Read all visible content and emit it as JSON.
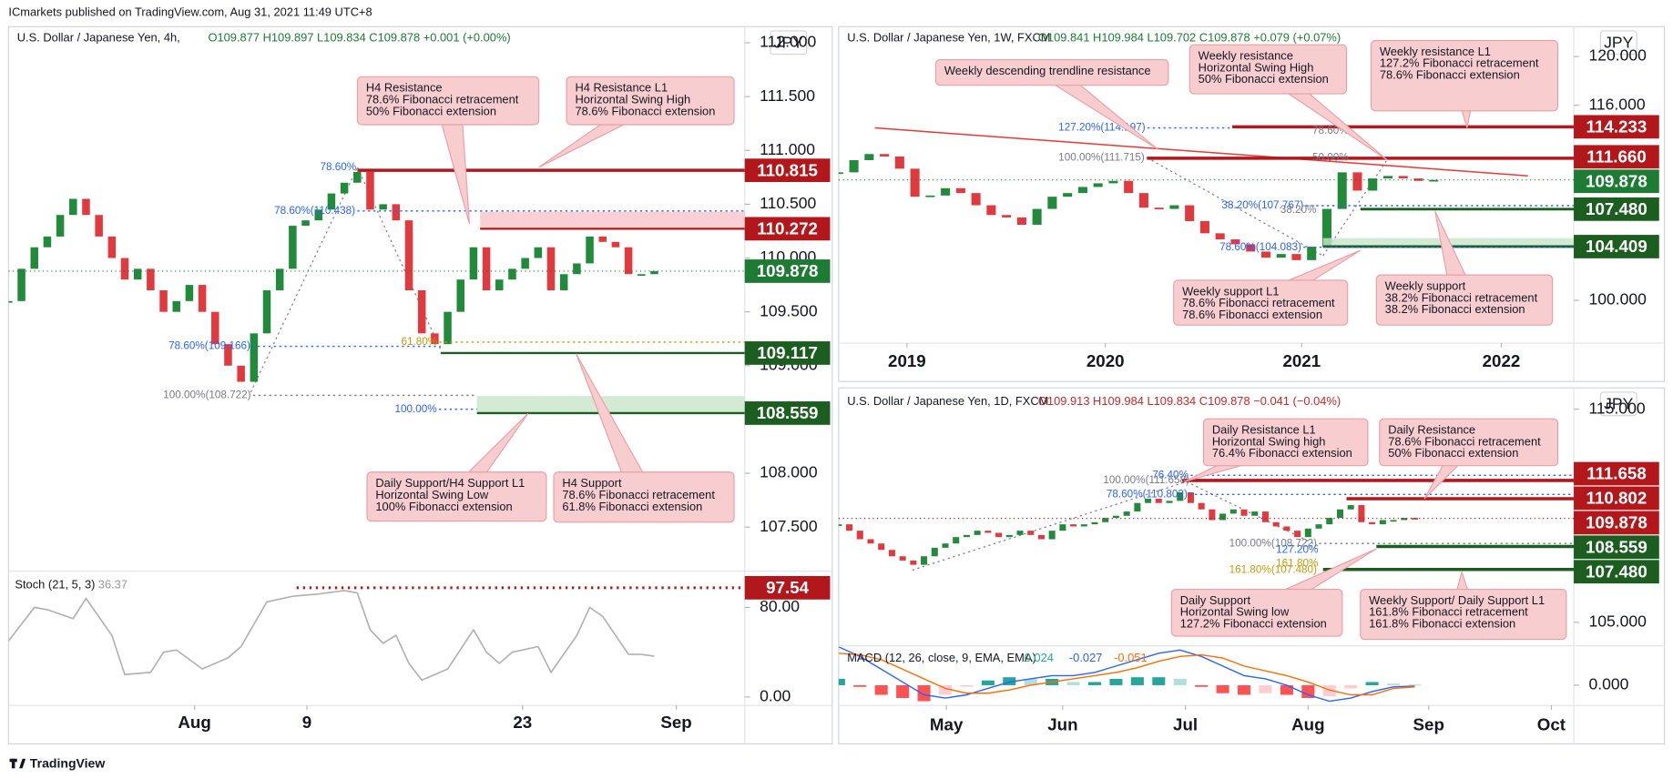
{
  "header": {
    "publisher": "ICmarkets published on TradingView.com, Aug 31, 2021 11:49 UTC+8"
  },
  "footer": {
    "brand": "TradingView"
  },
  "chart_data": [
    {
      "type": "candlestick",
      "title": "U.S. Dollar / Japanese Yen, 4h,",
      "ohlc": "O109.877 H109.897 L109.834 C109.878 +0.001 (+0.00%)",
      "currency": "JPY",
      "up_color": "#228b3b",
      "down_color": "#e0393e",
      "values": [
        109.6,
        109.9,
        110.1,
        110.2,
        110.4,
        110.55,
        110.4,
        110.2,
        110.0,
        109.8,
        109.9,
        109.7,
        109.5,
        109.6,
        109.75,
        109.5,
        109.2,
        109.0,
        108.85,
        109.3,
        109.7,
        109.9,
        110.3,
        110.35,
        110.45,
        110.6,
        110.7,
        110.8,
        110.45,
        110.5,
        110.35,
        109.7,
        109.3,
        109.2,
        109.5,
        109.8,
        110.1,
        109.7,
        109.8,
        109.9,
        110.0,
        110.1,
        109.7,
        109.85,
        109.95,
        110.2,
        110.15,
        110.1,
        109.85,
        109.85,
        109.878
      ],
      "xlim": [
        0,
        57
      ],
      "xticks": [
        {
          "value": 14.4,
          "label": "Aug"
        },
        {
          "value": 23.1,
          "label": "9"
        },
        {
          "value": 39.8,
          "label": "23"
        },
        {
          "value": 51.7,
          "label": "Sep"
        }
      ],
      "ylim": [
        107.1,
        112.15
      ],
      "yticks": [
        {
          "value": 112,
          "label": "112.000"
        },
        {
          "value": 111.5,
          "label": "111.500"
        },
        {
          "value": 111,
          "label": "111.000"
        },
        {
          "value": 110.5,
          "label": "110.500"
        },
        {
          "value": 110,
          "label": "110.000"
        },
        {
          "value": 109.5,
          "label": "109.500"
        },
        {
          "value": 109,
          "label": "109.000"
        },
        {
          "value": 108.5,
          "label": "108.500"
        },
        {
          "value": 108,
          "label": "108.000"
        },
        {
          "value": 107.5,
          "label": "107.500"
        }
      ],
      "price_labels": [
        {
          "value": 110.815,
          "label": "110.815",
          "color": "#b2181b"
        },
        {
          "value": 110.272,
          "label": "110.272",
          "color": "#b2181b"
        },
        {
          "value": 109.878,
          "label": "109.878",
          "color": "#1e7b34"
        },
        {
          "value": 109.117,
          "label": "109.117",
          "color": "#1b5e20"
        },
        {
          "value": 108.559,
          "label": "108.559",
          "color": "#1b5e20"
        }
      ],
      "fib_labels": [
        "78.60%",
        "78.60%(110.438)",
        "78.60%(109.166)",
        "61.80%",
        "100.00%(108.722)",
        "100.00%"
      ],
      "annotations": [
        {
          "lines": [
            "H4 Resistance",
            "78.6% Fibonacci retracement",
            "50% Fibonacci extension"
          ]
        },
        {
          "lines": [
            "H4 Resistance L1",
            "Horizontal Swing High",
            "78.6% Fibonacci extension"
          ]
        },
        {
          "lines": [
            "Daily Support/H4 Support L1",
            "Horizontal Swing Low",
            "100% Fibonacci extension"
          ]
        },
        {
          "lines": [
            "H4 Support",
            "78.6% Fibonacci retracement",
            "61.8% Fibonacci extension"
          ]
        }
      ]
    },
    {
      "type": "line",
      "title": "Stoch (21, 5, 3)",
      "color": "#b0b0b0",
      "x": [
        0,
        2,
        3,
        5,
        6,
        8,
        9,
        11,
        12,
        13,
        15,
        17,
        18,
        20,
        22,
        24,
        26,
        27,
        28,
        29,
        30,
        31,
        32,
        34,
        36,
        37,
        38,
        39,
        41,
        42,
        44,
        45,
        46,
        47,
        48,
        49,
        50
      ],
      "values": [
        50,
        80,
        78,
        70,
        88,
        55,
        20,
        22,
        40,
        42,
        25,
        35,
        45,
        85,
        90,
        92,
        95,
        93,
        60,
        48,
        55,
        30,
        15,
        25,
        60,
        40,
        30,
        40,
        45,
        22,
        55,
        80,
        72,
        55,
        38,
        38,
        36.37
      ],
      "xlim": [
        0,
        57
      ],
      "ylim": [
        -7.6,
        111.4
      ],
      "yticks": [
        {
          "value": 80,
          "label": "80.00"
        },
        {
          "value": 0,
          "label": "0.00"
        }
      ],
      "price_labels": [
        {
          "value": 97.54,
          "label": "97.54",
          "color": "#b2181b"
        }
      ]
    },
    {
      "type": "candlestick",
      "title": "U.S. Dollar / Japanese Yen, 1W, FXCM",
      "ohlc": "O109.841 H109.984 L109.702 C109.878 +0.079 (+0.07%)",
      "currency": "JPY",
      "up_color": "#228b3b",
      "down_color": "#e0393e",
      "values": [
        110.5,
        111.5,
        112.0,
        111.8,
        110.8,
        108.5,
        108.6,
        109.2,
        108.8,
        107.8,
        107.0,
        106.8,
        106.2,
        107.5,
        108.5,
        108.8,
        109.3,
        109.6,
        109.8,
        108.8,
        107.6,
        107.5,
        107.8,
        106.5,
        105.5,
        105.0,
        104.6,
        104.0,
        103.5,
        103.8,
        103.3,
        104.4,
        107.5,
        110.5,
        109.0,
        110.0,
        110.2,
        110.0,
        109.8,
        109.878
      ],
      "xlim": [
        0,
        48.18
      ],
      "xticks": [
        {
          "value": 4.48,
          "label": "2019"
        },
        {
          "value": 17.48,
          "label": "2020"
        },
        {
          "value": 30.35,
          "label": "2021"
        },
        {
          "value": 43.43,
          "label": "2022"
        }
      ],
      "ylim": [
        96.49,
        122.45
      ],
      "yticks": [
        {
          "value": 120,
          "label": "120.000"
        },
        {
          "value": 116,
          "label": "116.000"
        },
        {
          "value": 100,
          "label": "100.000"
        }
      ],
      "price_labels": [
        {
          "value": 114.233,
          "label": "114.233",
          "color": "#b2181b"
        },
        {
          "value": 111.66,
          "label": "111.660",
          "color": "#b2181b"
        },
        {
          "value": 109.878,
          "label": "109.878",
          "color": "#1e7b34"
        },
        {
          "value": 107.48,
          "label": "107.480",
          "color": "#1b5e20"
        },
        {
          "value": 104.409,
          "label": "104.409",
          "color": "#1b5e20"
        }
      ],
      "fib_labels": [
        "127.20%(114.197)",
        "78.60%",
        "100.00%(111.715)",
        "50.00%",
        "38.20%(107.767)",
        "38.20%",
        "78.60%(104.083)"
      ],
      "annotations": [
        {
          "lines": [
            "Weekly descending trendline resistance"
          ]
        },
        {
          "lines": [
            "Weekly resistance",
            "Horizontal Swing High",
            "50% Fibonacci extension"
          ]
        },
        {
          "lines": [
            "Weekly resistance L1",
            "127.2% Fibonacci retracement",
            "78.6% Fibonacci extension"
          ]
        },
        {
          "lines": [
            "Weekly support L1",
            "78.6% Fibonacci retracement",
            "78.6% Fibonacci extension"
          ]
        },
        {
          "lines": [
            "Weekly support",
            "38.2% Fibonacci retracement",
            "38.2% Fibonacci extension"
          ]
        }
      ]
    },
    {
      "type": "candlestick",
      "title": "U.S. Dollar / Japanese Yen, 1D, FXCM",
      "ohlc": "O109.913 H109.984 L109.834 C109.878 −0.041 (−0.04%)",
      "currency": "JPY",
      "up_color": "#228b3b",
      "down_color": "#e0393e",
      "values": [
        109.6,
        109.3,
        108.9,
        108.7,
        108.4,
        108.1,
        107.9,
        107.7,
        108.1,
        108.5,
        108.7,
        109.0,
        109.1,
        109.3,
        109.2,
        109.0,
        109.1,
        109.3,
        109.1,
        108.9,
        109.3,
        109.6,
        109.5,
        109.6,
        109.7,
        109.9,
        110.0,
        110.2,
        110.6,
        110.8,
        110.6,
        110.7,
        111.1,
        110.6,
        110.3,
        109.8,
        110.1,
        110.3,
        110.0,
        110.2,
        109.7,
        109.5,
        109.3,
        109.0,
        109.4,
        109.6,
        109.9,
        110.3,
        110.5,
        109.7,
        109.6,
        109.8,
        109.8,
        109.9,
        109.878
      ],
      "xlim": [
        0,
        68.9
      ],
      "xticks": [
        {
          "value": 10.1,
          "label": "May"
        },
        {
          "value": 21.0,
          "label": "Jun"
        },
        {
          "value": 32.5,
          "label": "Jul"
        },
        {
          "value": 44.0,
          "label": "Aug"
        },
        {
          "value": 55.3,
          "label": "Sep"
        },
        {
          "value": 66.8,
          "label": "Oct"
        }
      ],
      "ylim": [
        103.95,
        116.0
      ],
      "yticks": [
        {
          "value": 115,
          "label": "115.000"
        },
        {
          "value": 105,
          "label": "105.000"
        }
      ],
      "price_labels": [
        {
          "value": 111.658,
          "label": "111.658",
          "color": "#b2181b"
        },
        {
          "value": 110.802,
          "label": "110.802",
          "color": "#b2181b"
        },
        {
          "value": 109.878,
          "label": "109.878",
          "color": "#b2181b"
        },
        {
          "value": 108.559,
          "label": "108.559",
          "color": "#1b5e20"
        },
        {
          "value": 107.48,
          "label": "107.480",
          "color": "#1b5e20"
        }
      ],
      "fib_labels": [
        "76.40%",
        "100.00%(111.658)",
        "78.60%(110.802)",
        "100.00%(108.722)",
        "127.20%",
        "161.80%",
        "161.80%(107.480)"
      ],
      "annotations": [
        {
          "lines": [
            "Daily Resistance L1",
            "Horizontal Swing high",
            "76.4% Fibonacci extension"
          ]
        },
        {
          "lines": [
            "Daily Resistance",
            "78.6% Fibonacci retracement",
            "50% Fibonacci extension"
          ]
        },
        {
          "lines": [
            "Daily Support",
            "Horizontal Swing low",
            "127.2% Fibonacci extension"
          ]
        },
        {
          "lines": [
            "Weekly Support/ Daily Support L1",
            "161.8% Fibonacci retracement",
            "161.8% Fibonacci extension"
          ]
        }
      ]
    },
    {
      "type": "macd",
      "title": "MACD (12, 26, close, 9, EMA, EMA)",
      "x": [
        0,
        2,
        4,
        6,
        8,
        10,
        12,
        14,
        16,
        18,
        20,
        22,
        24,
        26,
        28,
        30,
        32,
        34,
        36,
        38,
        40,
        42,
        44,
        46,
        48,
        50,
        52,
        54
      ],
      "series": [
        {
          "color": "#26a69a",
          "values": [
            0.2,
            -0.05,
            -0.3,
            -0.4,
            -0.5,
            -0.3,
            -0.05,
            0.15,
            0.25,
            0.2,
            0.2,
            0.1,
            0.1,
            0.2,
            0.25,
            0.25,
            0.2,
            -0.05,
            -0.25,
            -0.3,
            -0.25,
            -0.3,
            -0.4,
            -0.35,
            -0.1,
            0.1,
            0.05,
            0.024
          ]
        },
        {
          "color": "#2962ff",
          "values": [
            1.2,
            0.9,
            0.5,
            0.1,
            -0.3,
            -0.4,
            -0.3,
            -0.1,
            0.1,
            0.2,
            0.3,
            0.3,
            0.4,
            0.6,
            0.8,
            1.0,
            1.1,
            0.9,
            0.6,
            0.3,
            0.2,
            0.0,
            -0.3,
            -0.5,
            -0.4,
            -0.2,
            -0.05,
            -0.027
          ]
        },
        {
          "color": "#ff6d00",
          "values": [
            1.0,
            0.95,
            0.8,
            0.5,
            0.2,
            -0.1,
            -0.25,
            -0.25,
            -0.15,
            0.0,
            0.1,
            0.2,
            0.3,
            0.4,
            0.55,
            0.75,
            0.9,
            0.95,
            0.85,
            0.6,
            0.45,
            0.3,
            0.1,
            -0.15,
            -0.3,
            -0.3,
            -0.1,
            -0.051
          ]
        }
      ],
      "xlim": [
        0,
        68.9
      ],
      "ylim": [
        -0.633,
        1.2
      ],
      "yticks": [
        {
          "value": 0,
          "label": "0.000"
        }
      ]
    }
  ]
}
